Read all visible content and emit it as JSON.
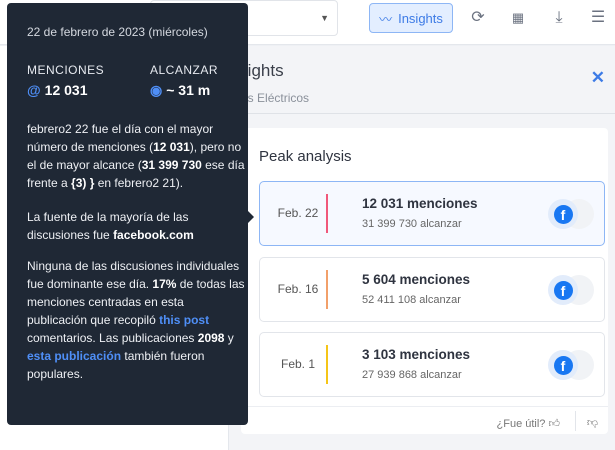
{
  "toolbar": {
    "insights_label": "Insights",
    "icons": [
      "trend-icon",
      "refresh-icon",
      "grid-icon",
      "download-icon",
      "sliders-icon"
    ]
  },
  "panel": {
    "title": "Insights",
    "subtitle": "Autos Eléctricos",
    "card_title": "Peak analysis",
    "feedback": "¿Fue útil?"
  },
  "peaks": [
    {
      "date": "Feb. 22",
      "mentions": "12 031 menciones",
      "reach": "31 399 730 alcanzar",
      "color": "#f0587a",
      "source": "facebook"
    },
    {
      "date": "Feb. 16",
      "mentions": "5 604 menciones",
      "reach": "52 411 108 alcanzar",
      "color": "#f2a06a",
      "source": "facebook"
    },
    {
      "date": "Feb. 1",
      "mentions": "3 103 menciones",
      "reach": "27 939 868 alcanzar",
      "color": "#f5c518",
      "source": "facebook"
    }
  ],
  "tooltip": {
    "date": "22 de febrero de 2023 (miércoles)",
    "mentions_label": "MENCIONES",
    "mentions_value": "12 031",
    "reach_label": "ALCANZAR",
    "reach_value": "~ 31 m",
    "p1": {
      "a": "febrero2 22 fue el día con el mayor número de menciones (",
      "b": "12 031",
      "c": "), pero no el de mayor alcance (",
      "d": "31 399 730",
      "e": " ese día frente a ",
      "f": "{3) }",
      "g": " en febrero2 21)."
    },
    "p2": {
      "a": "La fuente de la mayoría de las discusiones fue ",
      "b": "facebook.com"
    },
    "p3": {
      "a": "Ninguna de las discusiones individuales fue dominante ese día. ",
      "b": "17%",
      "c": " de todas las menciones centradas en esta publicación que recopiló ",
      "link1": "this post",
      "d": " comentarios. Las publicaciones ",
      "e": "2098",
      "f": " y ",
      "link2": "esta publicación",
      "g": " también fueron populares."
    }
  }
}
